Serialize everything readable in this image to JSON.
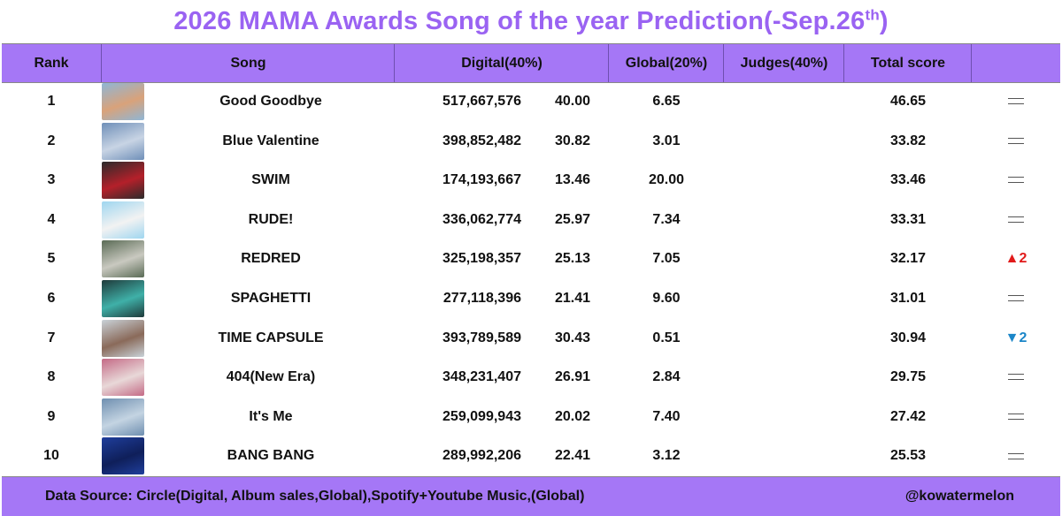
{
  "title": {
    "main": "2026 MAMA Awards Song of the year Prediction(-Sep.26",
    "sup": "th",
    "end": ")"
  },
  "headers": {
    "rank": "Rank",
    "song": "Song",
    "digital": "Digital(40%)",
    "global": "Global(20%)",
    "judges": "Judges(40%)",
    "total": "Total score",
    "change": ""
  },
  "rows": [
    {
      "rank": "1",
      "song": "Good Goodbye",
      "digital": "517,667,576",
      "digital_pts": "40.00",
      "global": "6.65",
      "judges": "",
      "total": "46.65",
      "change": "same",
      "change_text": ""
    },
    {
      "rank": "2",
      "song": "Blue Valentine",
      "digital": "398,852,482",
      "digital_pts": "30.82",
      "global": "3.01",
      "judges": "",
      "total": "33.82",
      "change": "same",
      "change_text": ""
    },
    {
      "rank": "3",
      "song": "SWIM",
      "digital": "174,193,667",
      "digital_pts": "13.46",
      "global": "20.00",
      "judges": "",
      "total": "33.46",
      "change": "same",
      "change_text": ""
    },
    {
      "rank": "4",
      "song": "RUDE!",
      "digital": "336,062,774",
      "digital_pts": "25.97",
      "global": "7.34",
      "judges": "",
      "total": "33.31",
      "change": "same",
      "change_text": ""
    },
    {
      "rank": "5",
      "song": "REDRED",
      "digital": "325,198,357",
      "digital_pts": "25.13",
      "global": "7.05",
      "judges": "",
      "total": "32.17",
      "change": "up",
      "change_text": "▲2"
    },
    {
      "rank": "6",
      "song": "SPAGHETTI",
      "digital": "277,118,396",
      "digital_pts": "21.41",
      "global": "9.60",
      "judges": "",
      "total": "31.01",
      "change": "same",
      "change_text": ""
    },
    {
      "rank": "7",
      "song": "TIME CAPSULE",
      "digital": "393,789,589",
      "digital_pts": "30.43",
      "global": "0.51",
      "judges": "",
      "total": "30.94",
      "change": "down",
      "change_text": "▼2"
    },
    {
      "rank": "8",
      "song": "404(New Era)",
      "digital": "348,231,407",
      "digital_pts": "26.91",
      "global": "2.84",
      "judges": "",
      "total": "29.75",
      "change": "same",
      "change_text": ""
    },
    {
      "rank": "9",
      "song": "It's Me",
      "digital": "259,099,943",
      "digital_pts": "20.02",
      "global": "7.40",
      "judges": "",
      "total": "27.42",
      "change": "same",
      "change_text": ""
    },
    {
      "rank": "10",
      "song": "BANG BANG",
      "digital": "289,992,206",
      "digital_pts": "22.41",
      "global": "3.12",
      "judges": "",
      "total": "25.53",
      "change": "same",
      "change_text": ""
    }
  ],
  "thumb_colors": [
    [
      "#8fb6d6",
      "#d9a27a"
    ],
    [
      "#6f8fb8",
      "#c8d4e4"
    ],
    [
      "#2b2b2b",
      "#b4202a"
    ],
    [
      "#9fd6f0",
      "#f2f2f2"
    ],
    [
      "#5a6b55",
      "#c9c9c0"
    ],
    [
      "#1f3a3a",
      "#3fb0a8"
    ],
    [
      "#c9d2d8",
      "#8a6a5a"
    ],
    [
      "#c46a86",
      "#e8d8d8"
    ],
    [
      "#6f8fb0",
      "#c4d4e2"
    ],
    [
      "#1f3e9c",
      "#0f1f5a"
    ]
  ],
  "footer": {
    "source": "Data Source: Circle(Digital, Album sales,Global),Spotify+Youtube Music,(Global)",
    "handle": "@kowatermelon"
  }
}
